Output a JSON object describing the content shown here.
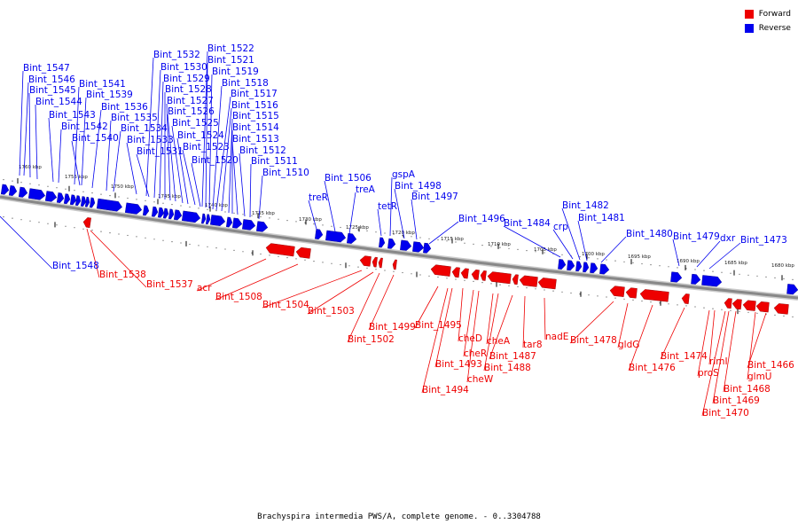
{
  "colors": {
    "forward": "#ee0000",
    "reverse": "#0000ee",
    "backbone": "#888888",
    "backbone_light": "#cccccc"
  },
  "legend": [
    {
      "label": "Forward",
      "color": "#ee0000"
    },
    {
      "label": "Reverse",
      "color": "#0000ee"
    }
  ],
  "caption": "Brachyspira intermedia PWS/A, complete genome. - 0..3304788",
  "scale_labels": [
    "1760 kbp",
    "1755 kbp",
    "1750 kbp",
    "1745 kbp",
    "1740 kbp",
    "1735 kbp",
    "1730 kbp",
    "1725 kbp",
    "1720 kbp",
    "1715 kbp",
    "1710 kbp",
    "1705 kbp",
    "1700 kbp",
    "1695 kbp",
    "1690 kbp",
    "1685 kbp",
    "1680 kbp"
  ],
  "reverse_genes": [
    "Bint_1547",
    "Bint_1546",
    "Bint_1545",
    "Bint_1544",
    "Bint_1543",
    "Bint_1542",
    "Bint_1541",
    "Bint_1539",
    "Bint_1540",
    "Bint_1536",
    "Bint_1535",
    "Bint_1534",
    "Bint_1533",
    "Bint_1532",
    "Bint_1531",
    "Bint_1530",
    "Bint_1529",
    "Bint_1528",
    "Bint_1527",
    "Bint_1526",
    "Bint_1525",
    "Bint_1524",
    "Bint_1523",
    "Bint_1522",
    "Bint_1521",
    "Bint_1520",
    "Bint_1519",
    "Bint_1518",
    "Bint_1517",
    "Bint_1516",
    "Bint_1515",
    "Bint_1514",
    "Bint_1513",
    "Bint_1512",
    "Bint_1511",
    "Bint_1510",
    "Bint_1506",
    "treR",
    "treA",
    "gspA",
    "tetR",
    "Bint_1498",
    "Bint_1497",
    "Bint_1496",
    "Bint_1484",
    "crp",
    "Bint_1482",
    "Bint_1481",
    "Bint_1480",
    "Bint_1479",
    "dxr",
    "Bint_1473",
    "Bint_1548"
  ],
  "forward_genes": [
    "Bint_1538",
    "Bint_1537",
    "acr",
    "Bint_1508",
    "Bint_1504",
    "Bint_1503",
    "Bint_1502",
    "Bint_1499",
    "Bint_1495",
    "cheD",
    "Bint_1493",
    "cheR",
    "Bint_1494",
    "cheW",
    "cheA",
    "Bint_1488",
    "Bint_1487",
    "tar8",
    "nadE",
    "Bint_1478",
    "gldG",
    "Bint_1476",
    "Bint_1474",
    "rimI",
    "proS",
    "Bint_1466",
    "glmU",
    "Bint_1468",
    "Bint_1469",
    "Bint_1470"
  ]
}
